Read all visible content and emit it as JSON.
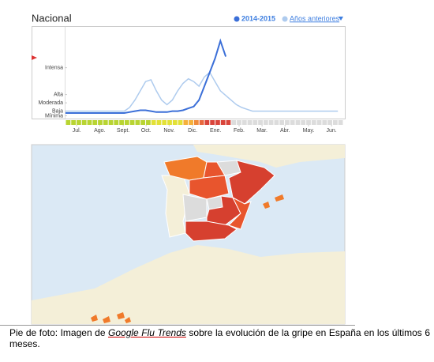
{
  "chart_data": {
    "type": "line",
    "title": "Nacional",
    "xlim": [
      0,
      52
    ],
    "xticks": [
      {
        "value": 2.1,
        "label": "Jul."
      },
      {
        "value": 6.4,
        "label": "Ago."
      },
      {
        "value": 10.8,
        "label": "Sept."
      },
      {
        "value": 15.1,
        "label": "Oct."
      },
      {
        "value": 19.4,
        "label": "Nov."
      },
      {
        "value": 23.8,
        "label": "Dic."
      },
      {
        "value": 28.1,
        "label": "Ene."
      },
      {
        "value": 32.5,
        "label": "Feb."
      },
      {
        "value": 36.8,
        "label": "Mar."
      },
      {
        "value": 41.1,
        "label": "Abr."
      },
      {
        "value": 45.5,
        "label": "May."
      },
      {
        "value": 49.8,
        "label": "Jun."
      }
    ],
    "ylim": [
      0,
      100
    ],
    "yticks": [
      {
        "value": 55,
        "label": "Intensa"
      },
      {
        "value": 26,
        "label": "Alta"
      },
      {
        "value": 17,
        "label": "Moderada"
      },
      {
        "value": 8,
        "label": "Baja"
      },
      {
        "value": 3,
        "label": "Mínima"
      }
    ],
    "series": [
      {
        "name": "2014-2015",
        "color": "#3b6fd8",
        "x": [
          0,
          1,
          2,
          3,
          4,
          5,
          6,
          7,
          8,
          9,
          10,
          11,
          12,
          13,
          14,
          15,
          16,
          17,
          18,
          19,
          20,
          21,
          22,
          23,
          24,
          25,
          26,
          27,
          28,
          29,
          30
        ],
        "values": [
          6,
          6,
          6,
          6,
          6,
          6,
          6,
          6,
          6,
          6,
          6,
          6,
          7,
          8,
          9,
          9,
          8,
          7,
          7,
          7,
          8,
          8,
          9,
          11,
          13,
          20,
          35,
          50,
          65,
          84,
          67
        ]
      },
      {
        "name": "Años anteriores",
        "color": "#aecbee",
        "x": [
          0,
          1,
          2,
          3,
          4,
          5,
          6,
          7,
          8,
          9,
          10,
          11,
          12,
          13,
          14,
          15,
          16,
          17,
          18,
          19,
          20,
          21,
          22,
          23,
          24,
          25,
          26,
          27,
          28,
          29,
          30,
          31,
          32,
          33,
          34,
          35,
          36,
          37,
          38,
          39,
          40,
          41,
          42,
          43,
          44,
          45,
          46,
          47,
          48,
          49,
          50,
          51
        ],
        "values": [
          8,
          8,
          8,
          8,
          8,
          8,
          8,
          8,
          8,
          8,
          8,
          8,
          12,
          20,
          30,
          40,
          42,
          30,
          20,
          15,
          20,
          30,
          38,
          43,
          40,
          35,
          45,
          50,
          40,
          30,
          25,
          20,
          15,
          12,
          10,
          8,
          8,
          8,
          8,
          8,
          8,
          8,
          8,
          8,
          8,
          8,
          8,
          8,
          8,
          8,
          8,
          8
        ]
      }
    ],
    "level_strip": [
      "#b8d432",
      "#b8d432",
      "#b8d432",
      "#b8d432",
      "#b8d432",
      "#b8d432",
      "#b8d432",
      "#b8d432",
      "#b8d432",
      "#b8d432",
      "#b8d432",
      "#b8d432",
      "#b8d432",
      "#b8d432",
      "#b8d432",
      "#b8d432",
      "#e3e136",
      "#e3e136",
      "#e3e136",
      "#e3e136",
      "#e3e136",
      "#e3e136",
      "#f5b03a",
      "#f5b03a",
      "#f08a3a",
      "#e8683e",
      "#d9453b",
      "#d9453b",
      "#d9453b",
      "#d9453b",
      "#d9453b",
      "#dcdcdc",
      "#dcdcdc",
      "#dcdcdc",
      "#dcdcdc",
      "#dcdcdc",
      "#dcdcdc",
      "#dcdcdc",
      "#dcdcdc",
      "#dcdcdc",
      "#dcdcdc",
      "#dcdcdc",
      "#dcdcdc",
      "#dcdcdc",
      "#dcdcdc",
      "#dcdcdc",
      "#dcdcdc",
      "#dcdcdc",
      "#dcdcdc",
      "#dcdcdc",
      "#dcdcdc",
      "#dcdcdc"
    ]
  },
  "caption": {
    "before": "Pie de foto: Imagen de ",
    "link": "Google Flu Trends",
    "after": " sobre la evolución de la gripe en España en los últimos 6 meses."
  }
}
